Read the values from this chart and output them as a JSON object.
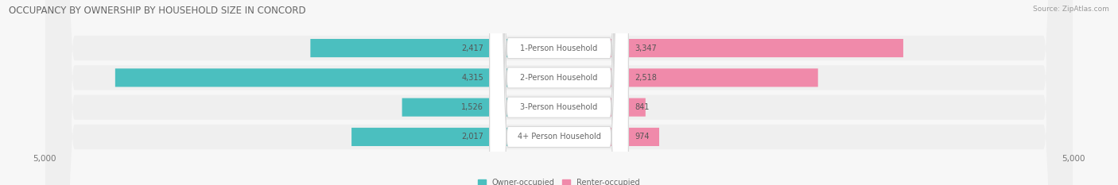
{
  "title": "OCCUPANCY BY OWNERSHIP BY HOUSEHOLD SIZE IN CONCORD",
  "source": "Source: ZipAtlas.com",
  "categories": [
    "1-Person Household",
    "2-Person Household",
    "3-Person Household",
    "4+ Person Household"
  ],
  "owner_values": [
    2417,
    4315,
    1526,
    2017
  ],
  "renter_values": [
    3347,
    2518,
    841,
    974
  ],
  "max_scale": 5000,
  "owner_color": "#4bbfbf",
  "renter_color": "#f08aaa",
  "bg_color": "#f7f7f7",
  "row_bg_color": "#efefef",
  "title_fontsize": 8.5,
  "label_fontsize": 7.0,
  "source_fontsize": 6.5,
  "axis_label_fontsize": 7.5,
  "bar_height": 0.62,
  "value_color": "#555555",
  "label_color": "#666666"
}
